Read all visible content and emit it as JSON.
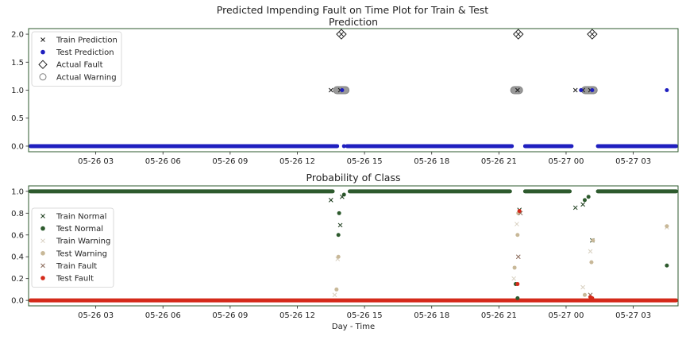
{
  "figure": {
    "title": "Predicted Impending Fault on Time Plot for Train & Test"
  },
  "chart_data": [
    {
      "type": "scatter",
      "title": "Prediction",
      "xlabel": "",
      "ylabel": "",
      "x_axis": "time",
      "xlim": [
        "2021-05-26T00:00",
        "2021-05-27T05:00"
      ],
      "ylim": [
        -0.1,
        2.1
      ],
      "x_ticks": [
        "05-26 03",
        "05-26 06",
        "05-26 09",
        "05-26 12",
        "05-26 15",
        "05-26 18",
        "05-26 21",
        "05-27 00",
        "05-27 03"
      ],
      "y_ticks": [
        "0.0",
        "0.5",
        "1.0",
        "1.5",
        "2.0"
      ],
      "legend": {
        "placement": "top-left",
        "entries": [
          "Train Prediction",
          "Test Prediction",
          "Actual Fault",
          "Actual Warning"
        ]
      },
      "colors": {
        "train": "#1a1a1a",
        "test": "#1f1fbf",
        "fault": "#1a1a1a",
        "warning": "#808080",
        "spine": "#2e5a2e"
      },
      "series": [
        {
          "name": "Train Prediction",
          "marker": "x",
          "points": [
            [
              "2021-05-26T13:30",
              1
            ],
            [
              "2021-05-26T13:55",
              1
            ],
            [
              "2021-05-26T21:50",
              1
            ],
            [
              "2021-05-27T00:25",
              1
            ],
            [
              "2021-05-27T00:45",
              1
            ],
            [
              "2021-05-27T01:05",
              1
            ]
          ]
        },
        {
          "name": "Test Prediction",
          "marker": "dot",
          "points": [
            [
              "2021-05-26T14:00",
              1
            ],
            [
              "2021-05-27T00:40",
              1
            ],
            [
              "2021-05-27T01:10",
              1
            ],
            [
              "2021-05-27T04:30",
              1
            ],
            [
              "2021-05-26T14:05",
              0
            ]
          ],
          "runs": [
            [
              "2021-05-26T00:00",
              "2021-05-26T13:52",
              0
            ],
            [
              "2021-05-26T14:08",
              "2021-05-26T21:40",
              0
            ],
            [
              "2021-05-26T22:05",
              "2021-05-27T00:20",
              0
            ],
            [
              "2021-05-27T01:20",
              "2021-05-27T05:00",
              0
            ]
          ]
        },
        {
          "name": "Actual Fault",
          "marker": "diamond",
          "points": [
            [
              "2021-05-26T13:58",
              2
            ],
            [
              "2021-05-26T21:52",
              2
            ],
            [
              "2021-05-27T01:10",
              2
            ]
          ]
        },
        {
          "name": "Actual Warning",
          "marker": "circle",
          "runs": [
            [
              "2021-05-26T13:45",
              "2021-05-26T14:10",
              1
            ],
            [
              "2021-05-26T21:40",
              "2021-05-26T21:55",
              1
            ],
            [
              "2021-05-27T00:50",
              "2021-05-27T01:15",
              1
            ]
          ]
        }
      ]
    },
    {
      "type": "scatter",
      "title": "Probability of Class",
      "xlabel": "Day - Time",
      "ylabel": "",
      "x_axis": "time",
      "xlim": [
        "2021-05-26T00:00",
        "2021-05-27T05:00"
      ],
      "ylim": [
        -0.05,
        1.05
      ],
      "x_ticks": [
        "05-26 03",
        "05-26 06",
        "05-26 09",
        "05-26 12",
        "05-26 15",
        "05-26 18",
        "05-26 21",
        "05-27 00",
        "05-27 03"
      ],
      "y_ticks": [
        "0.0",
        "0.2",
        "0.4",
        "0.6",
        "0.8",
        "1.0"
      ],
      "legend": {
        "placement": "center-left",
        "entries": [
          "Train Normal",
          "Test Normal",
          "Train Warning",
          "Test Warning",
          "Train Fault",
          "Test Fault"
        ]
      },
      "colors": {
        "train_normal": "#1a3a1a",
        "test_normal": "#2d5a2d",
        "train_warning": "#d8d0c0",
        "test_warning": "#c8b898",
        "train_fault": "#8a6a5a",
        "test_fault": "#d42a1a",
        "spine": "#2e5a2e"
      },
      "series": [
        {
          "name": "Test Normal",
          "marker": "dot",
          "runs": [
            [
              "2021-05-26T00:00",
              "2021-05-26T13:40",
              1.0
            ],
            [
              "2021-05-26T14:15",
              "2021-05-26T21:35",
              1.0
            ],
            [
              "2021-05-26T22:05",
              "2021-05-27T00:15",
              1.0
            ],
            [
              "2021-05-27T01:20",
              "2021-05-27T05:00",
              1.0
            ]
          ],
          "points": [
            [
              "2021-05-26T13:50",
              0.6
            ],
            [
              "2021-05-26T13:52",
              0.8
            ],
            [
              "2021-05-26T14:05",
              0.97
            ],
            [
              "2021-05-26T21:45",
              0.15
            ],
            [
              "2021-05-26T21:50",
              0.02
            ],
            [
              "2021-05-27T04:30",
              0.32
            ],
            [
              "2021-05-27T00:50",
              0.92
            ],
            [
              "2021-05-27T01:00",
              0.95
            ]
          ]
        },
        {
          "name": "Train Normal",
          "marker": "x",
          "points": [
            [
              "2021-05-26T13:30",
              0.92
            ],
            [
              "2021-05-26T13:55",
              0.69
            ],
            [
              "2021-05-26T14:00",
              0.95
            ],
            [
              "2021-05-26T21:55",
              0.83
            ],
            [
              "2021-05-27T00:25",
              0.85
            ],
            [
              "2021-05-27T00:45",
              0.88
            ],
            [
              "2021-05-27T01:10",
              0.55
            ]
          ]
        },
        {
          "name": "Train Warning",
          "marker": "x",
          "points": [
            [
              "2021-05-26T13:40",
              0.05
            ],
            [
              "2021-05-26T13:48",
              0.38
            ],
            [
              "2021-05-26T21:40",
              0.2
            ],
            [
              "2021-05-26T21:48",
              0.7
            ],
            [
              "2021-05-27T00:45",
              0.12
            ],
            [
              "2021-05-27T01:05",
              0.45
            ],
            [
              "2021-05-27T04:30",
              0.67
            ]
          ]
        },
        {
          "name": "Test Warning",
          "marker": "dot",
          "points": [
            [
              "2021-05-26T13:45",
              0.1
            ],
            [
              "2021-05-26T13:50",
              0.4
            ],
            [
              "2021-05-26T21:42",
              0.3
            ],
            [
              "2021-05-26T21:50",
              0.6
            ],
            [
              "2021-05-26T21:52",
              0.8
            ],
            [
              "2021-05-27T00:50",
              0.05
            ],
            [
              "2021-05-27T01:08",
              0.35
            ],
            [
              "2021-05-27T01:12",
              0.55
            ],
            [
              "2021-05-27T04:30",
              0.68
            ]
          ]
        },
        {
          "name": "Train Fault",
          "marker": "x",
          "points": [
            [
              "2021-05-26T21:52",
              0.4
            ],
            [
              "2021-05-26T21:58",
              0.8
            ],
            [
              "2021-05-27T01:05",
              0.05
            ]
          ]
        },
        {
          "name": "Test Fault",
          "marker": "dot",
          "runs": [
            [
              "2021-05-26T00:00",
              "2021-05-27T05:00",
              0.0
            ]
          ],
          "points": [
            [
              "2021-05-26T21:50",
              0.15
            ],
            [
              "2021-05-26T21:55",
              0.82
            ],
            [
              "2021-05-27T01:05",
              0.03
            ],
            [
              "2021-05-27T01:10",
              0.02
            ]
          ]
        }
      ]
    }
  ]
}
